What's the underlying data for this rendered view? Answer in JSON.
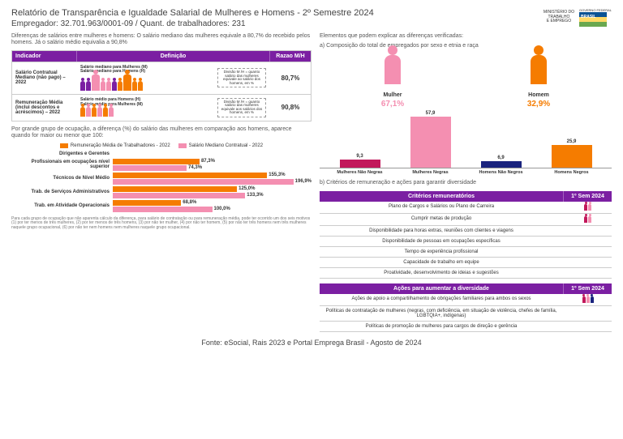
{
  "colors": {
    "purple": "#7b1fa2",
    "deep_purple": "#5e35b1",
    "pink": "#f48fb1",
    "orange": "#f57c00",
    "dark_pink": "#c2185b",
    "blue": "#1a237e"
  },
  "header": {
    "title": "Relatório de Transparência e Igualdade Salarial de Mulheres e Homens - 2º Semestre 2024",
    "subtitle": "Empregador: 32.701.963/0001-09    /    Quant. de trabalhadores: 231",
    "ministry_label": "MINISTÉRIO DO\nTRABALHO\nE EMPREGO",
    "gov_label": "GOVERNO FEDERAL"
  },
  "left": {
    "intro": "Diferenças de salários entre mulheres e homens: O salário mediano das mulheres equivale a 80,7% do recebido pelos homens. Já o salário médio equivalia a 90,8%",
    "table_headers": {
      "indicador": "Indicador",
      "definicao": "Definição",
      "razao": "Razao M/H"
    },
    "rows": [
      {
        "indicador": "Salário Contratual Mediano (não pago) – 2022",
        "def1": "Salário mediano para Mulheres (M)",
        "def2": "Salário mediano para Homens (H)",
        "box": "Divisão M /H = quanto salário das mulheres equivale ao salário dos homens, em %",
        "razao": "80,7%"
      },
      {
        "indicador": "Remuneração Média (inclui descontos e acréscimos) – 2022",
        "def1": "Salário médio para Homens (H)",
        "def2": "Salário médio para Mulheres (M)",
        "box": "Divisão M /H = quanto salário das mulheres equivale aos salários dos homens, em %",
        "razao": "90,8%"
      }
    ],
    "section2": "Por grande grupo de ocupação, a diferença (%) do salário das mulheres em comparação aos homens, aparece quando for maior ou menor que 100:",
    "legend": {
      "a": "Remuneração Média de Trabalhadores - 2022",
      "b": "Salário Mediano Contratual - 2022"
    },
    "legend_colors": {
      "a": "#f57c00",
      "b": "#f48fb1"
    },
    "max_scale": 200,
    "categories": [
      {
        "label": "Dirigentes e Gerentes",
        "a": null,
        "b": null
      },
      {
        "label": "Profissionais em ocupações nível superior",
        "a": 87.3,
        "b": 74.3,
        "a_txt": "87,3%",
        "b_txt": "74,3%"
      },
      {
        "label": "Técnicos de Nível Médio",
        "a": 155.3,
        "b": 196.9,
        "a_txt": "155,3%",
        "b_txt": "196,9%"
      },
      {
        "label": "Trab. de Serviços Administrativos",
        "a": 125.0,
        "b": 133.3,
        "a_txt": "125,0%",
        "b_txt": "133,3%"
      },
      {
        "label": "Trab. em Atividade Operacionais",
        "a": 68.8,
        "b": 100.0,
        "a_txt": "68,8%",
        "b_txt": "100,0%"
      }
    ],
    "footnote": "Para cada grupo de ocupação que não aparenta cálculo da diferença, para salário de contratação ou para remuneração média, pode ter ocorrido um dos seis motivos (1) por ter menos de três mulheres, (2) por ter menos de três homens, (3) por não ter mulher, (4) por não ter homem, (5) por não ter três homens nem três mulheres naquele grupo ocupacional, (6) por não ter nem homens nem mulheres naquele grupo ocupacional."
  },
  "right": {
    "intro": "Elementos que podem explicar as diferenças verificadas:",
    "a_label": "a) Composição do total de empregados por sexo e etnia e raça",
    "mulher": {
      "label": "Mulher",
      "pct": "67,1%",
      "color": "#f48fb1"
    },
    "homem": {
      "label": "Homem",
      "pct": "32,9%",
      "color": "#f57c00"
    },
    "comp_max": 60,
    "comp_bars": [
      {
        "label": "Mulheres Não Negras",
        "val": 9.3,
        "txt": "9,3",
        "color": "#c2185b"
      },
      {
        "label": "Mulheres Negras",
        "val": 57.9,
        "txt": "57,9",
        "color": "#f48fb1"
      },
      {
        "label": "Homens Não Negros",
        "val": 6.9,
        "txt": "6,9",
        "color": "#1a237e"
      },
      {
        "label": "Homens Negros",
        "val": 25.9,
        "txt": "25,9",
        "color": "#f57c00"
      }
    ],
    "b_label": "b) Critérios de remuneração e ações para garantir diversidade",
    "table1_head": {
      "name": "Critérios remuneratórios",
      "sem": "1º Sem 2024"
    },
    "table1_rows": [
      {
        "name": "Plano de Cargos e Salários ou Plano de Carreira",
        "icons": 2
      },
      {
        "name": "Cumprir metas de produção",
        "icons": 2
      },
      {
        "name": "Disponibilidade para horas extras, reuniões com clientes e viagens",
        "icons": 0
      },
      {
        "name": "Disponibilidade de pessoas em ocupações específicas",
        "icons": 0
      },
      {
        "name": "Tempo de experiência profissional",
        "icons": 0
      },
      {
        "name": "Capacidade de trabalho em equipe",
        "icons": 0
      },
      {
        "name": "Proatividade, desenvolvimento de ideias e sugestões",
        "icons": 0
      }
    ],
    "table2_head": {
      "name": "Ações para aumentar a diversidade",
      "sem": "1º Sem 2024"
    },
    "table2_rows": [
      {
        "name": "Ações de apoio a compartilhamento de obrigações familiares para ambos os sexos",
        "icons": 3
      },
      {
        "name": "Políticas de contratação de mulheres (negras, com deficiência, em situação de violência, chefes de família, LGBTQIA+, indígenas)",
        "icons": 0
      },
      {
        "name": "Políticas de promoção de mulheres para cargos de direção e gerência",
        "icons": 0
      }
    ]
  },
  "source": "Fonte: eSocial, Rais 2023 e Portal Emprega Brasil - Agosto de 2024"
}
